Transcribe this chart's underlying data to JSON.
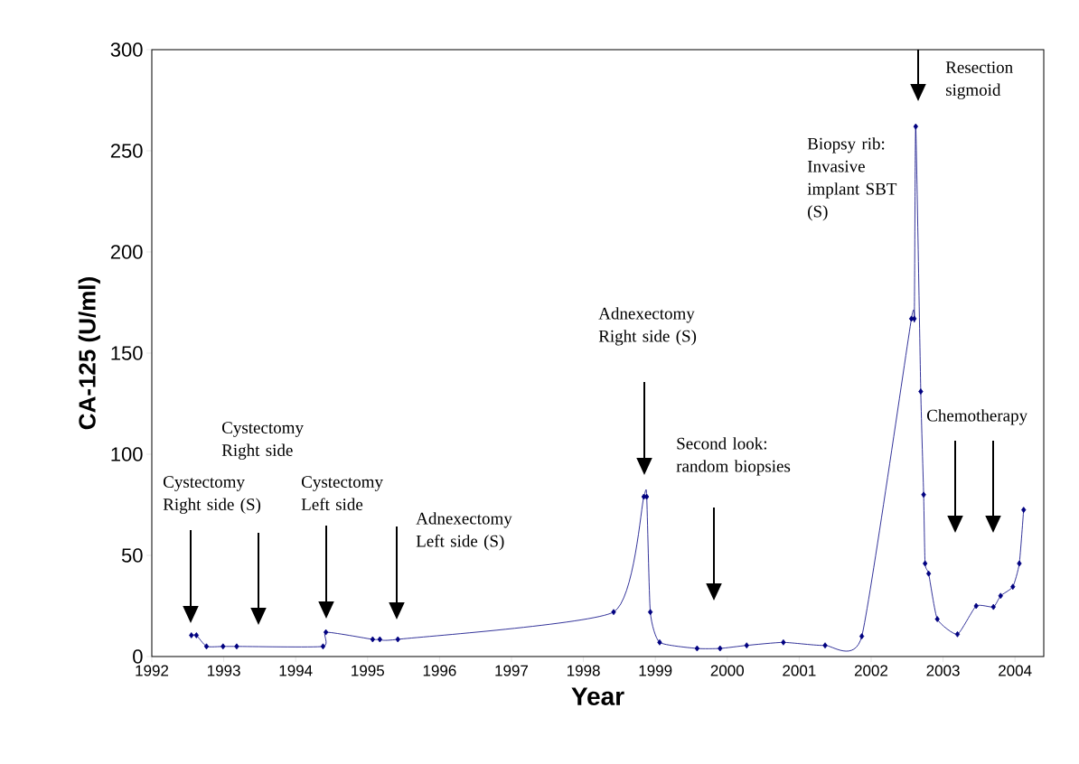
{
  "chart_data": {
    "type": "line",
    "xlabel": "Year",
    "ylabel": "CA-125 (U/ml)",
    "xlim": [
      1992,
      2004.4
    ],
    "xticks": [
      1992,
      1993,
      1994,
      1995,
      1996,
      1997,
      1998,
      1999,
      2000,
      2001,
      2002,
      2003,
      2004
    ],
    "ylim": [
      0,
      300
    ],
    "yticks": [
      0,
      50,
      100,
      150,
      200,
      250,
      300
    ],
    "grid": false,
    "marker": "diamond",
    "line_style": "solid",
    "series": [
      {
        "color": "#000080",
        "x": [
          1992.55,
          1992.62,
          1992.76,
          1992.99,
          1993.18,
          1994.38,
          1994.42,
          1995.07,
          1995.17,
          1995.42,
          1998.42,
          1998.84,
          1998.88,
          1998.93,
          1999.06,
          1999.58,
          1999.9,
          2000.27,
          2000.78,
          2001.36,
          2001.87,
          2002.56,
          2002.6,
          2002.62,
          2002.69,
          2002.73,
          2002.75,
          2002.8,
          2002.92,
          2003.2,
          2003.46,
          2003.7,
          2003.8,
          2003.97,
          2004.06,
          2004.12
        ],
        "values": [
          10.5,
          10.5,
          5,
          5,
          5,
          5,
          12,
          8.5,
          8.5,
          8.5,
          22,
          79,
          79,
          22,
          7,
          4,
          4,
          5.5,
          7,
          5.5,
          10,
          167,
          167,
          262,
          131,
          80,
          46,
          41,
          18.5,
          11,
          25,
          24.5,
          30,
          34.5,
          46,
          72.5
        ]
      }
    ],
    "annotations": [
      "Cystectomy Right side (S)",
      "Cystectomy Right side",
      "Cystectomy Left side",
      "Adnexectomy Left side (S)",
      "Adnexectomy Right side (S)",
      "Second look: random biopsies",
      "Biopsy rib: Invasive implant SBT (S)",
      "Resection sigmoid",
      "Chemotherapy"
    ]
  }
}
